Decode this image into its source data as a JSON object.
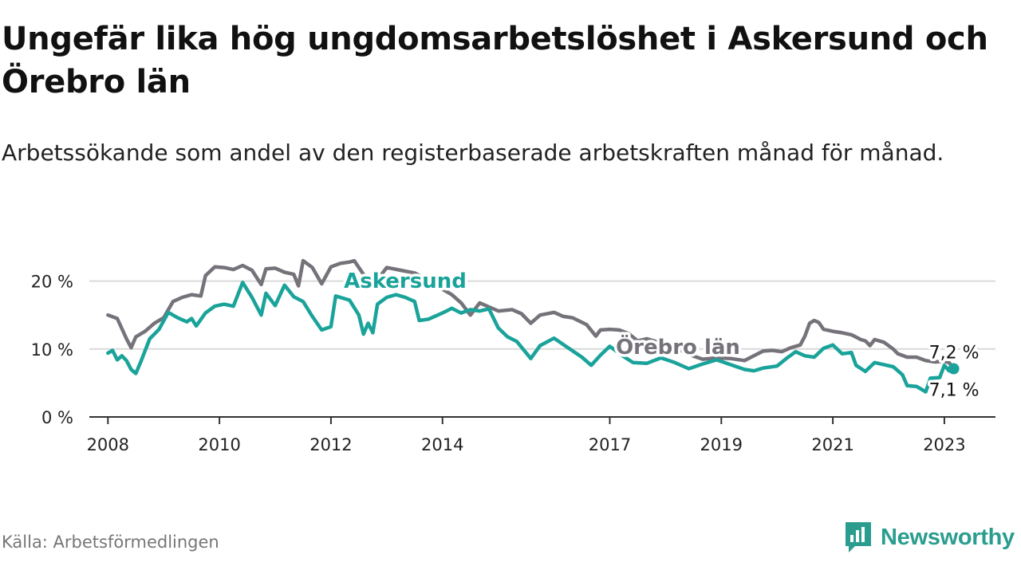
{
  "title": "Ungefär lika hög ungdomsarbetslöshet i Askersund och Örebro län",
  "subtitle": "Arbetssökande som andel av den registerbaserade arbetskraften månad för månad.",
  "source": "Källa: Arbetsförmedlingen",
  "brand": {
    "name": "Newsworthy",
    "icon": "newsworthy-logo-icon",
    "color": "#2a9d8f"
  },
  "colors": {
    "askersund": "#1aa39a",
    "orebro": "#75727a",
    "grid": "#d9d9d9",
    "axis": "#333333"
  },
  "chart_data": {
    "type": "line",
    "title": "Ungefär lika hög ungdomsarbetslöshet i Askersund och Örebro län",
    "subtitle": "Arbetssökande som andel av den registerbaserade arbetskraften månad för månad.",
    "xlabel": "",
    "ylabel": "",
    "ylim": [
      0,
      25
    ],
    "xlim": [
      "2007-09",
      "2023-12"
    ],
    "y_ticks": [
      {
        "value": 0,
        "label": "0 %"
      },
      {
        "value": 10,
        "label": "10 %"
      },
      {
        "value": 20,
        "label": "20 %"
      }
    ],
    "x_ticks": [
      {
        "value": "2008-01",
        "label": "2008"
      },
      {
        "value": "2010-01",
        "label": "2010"
      },
      {
        "value": "2012-01",
        "label": "2012"
      },
      {
        "value": "2014-01",
        "label": "2014"
      },
      {
        "value": "2017-01",
        "label": "2017"
      },
      {
        "value": "2019-01",
        "label": "2019"
      },
      {
        "value": "2021-01",
        "label": "2021"
      },
      {
        "value": "2023-01",
        "label": "2023"
      }
    ],
    "grid": true,
    "legend": "inline labels",
    "end_labels": {
      "orebro": "7,2 %",
      "askersund": "7,1 %"
    },
    "series": [
      {
        "name": "Örebro län",
        "key": "orebro",
        "points": [
          [
            "2008-01",
            15.0
          ],
          [
            "2008-03",
            14.5
          ],
          [
            "2008-05",
            11.5
          ],
          [
            "2008-06",
            10.2
          ],
          [
            "2008-07",
            11.8
          ],
          [
            "2008-09",
            12.6
          ],
          [
            "2008-11",
            13.8
          ],
          [
            "2009-01",
            14.6
          ],
          [
            "2009-03",
            17.0
          ],
          [
            "2009-05",
            17.6
          ],
          [
            "2009-07",
            18.0
          ],
          [
            "2009-09",
            17.8
          ],
          [
            "2009-10",
            20.8
          ],
          [
            "2009-12",
            22.1
          ],
          [
            "2010-02",
            22.0
          ],
          [
            "2010-04",
            21.7
          ],
          [
            "2010-06",
            22.3
          ],
          [
            "2010-08",
            21.6
          ],
          [
            "2010-10",
            19.5
          ],
          [
            "2010-11",
            21.8
          ],
          [
            "2011-01",
            21.9
          ],
          [
            "2011-03",
            21.3
          ],
          [
            "2011-05",
            21.0
          ],
          [
            "2011-06",
            19.3
          ],
          [
            "2011-07",
            23.0
          ],
          [
            "2011-09",
            22.0
          ],
          [
            "2011-11",
            19.6
          ],
          [
            "2012-01",
            22.1
          ],
          [
            "2012-03",
            22.6
          ],
          [
            "2012-05",
            22.8
          ],
          [
            "2012-06",
            23.0
          ],
          [
            "2012-08",
            21.0
          ],
          [
            "2012-10",
            19.3
          ],
          [
            "2013-01",
            22.0
          ],
          [
            "2013-04",
            21.6
          ],
          [
            "2013-07",
            21.2
          ],
          [
            "2013-10",
            20.1
          ],
          [
            "2014-01",
            18.8
          ],
          [
            "2014-03",
            18.0
          ],
          [
            "2014-05",
            16.8
          ],
          [
            "2014-07",
            15.0
          ],
          [
            "2014-09",
            16.8
          ],
          [
            "2014-11",
            16.2
          ],
          [
            "2015-01",
            15.6
          ],
          [
            "2015-04",
            15.8
          ],
          [
            "2015-06",
            15.2
          ],
          [
            "2015-08",
            13.8
          ],
          [
            "2015-10",
            15.0
          ],
          [
            "2016-01",
            15.4
          ],
          [
            "2016-03",
            14.8
          ],
          [
            "2016-05",
            14.6
          ],
          [
            "2016-08",
            13.6
          ],
          [
            "2016-10",
            11.9
          ],
          [
            "2016-11",
            12.8
          ],
          [
            "2017-01",
            12.9
          ],
          [
            "2017-03",
            12.8
          ],
          [
            "2017-05",
            12.3
          ],
          [
            "2017-07",
            11.2
          ],
          [
            "2017-09",
            11.5
          ],
          [
            "2017-12",
            10.9
          ],
          [
            "2018-03",
            10.3
          ],
          [
            "2018-06",
            9.2
          ],
          [
            "2018-09",
            8.5
          ],
          [
            "2018-12",
            8.7
          ],
          [
            "2019-03",
            8.6
          ],
          [
            "2019-06",
            8.3
          ],
          [
            "2019-08",
            9.0
          ],
          [
            "2019-10",
            9.7
          ],
          [
            "2019-12",
            9.8
          ],
          [
            "2020-02",
            9.6
          ],
          [
            "2020-04",
            10.2
          ],
          [
            "2020-06",
            10.6
          ],
          [
            "2020-07",
            11.9
          ],
          [
            "2020-08",
            13.8
          ],
          [
            "2020-09",
            14.2
          ],
          [
            "2020-10",
            13.9
          ],
          [
            "2020-11",
            12.9
          ],
          [
            "2021-01",
            12.6
          ],
          [
            "2021-03",
            12.4
          ],
          [
            "2021-05",
            12.1
          ],
          [
            "2021-07",
            11.4
          ],
          [
            "2021-08",
            11.2
          ],
          [
            "2021-09",
            10.5
          ],
          [
            "2021-10",
            11.4
          ],
          [
            "2021-12",
            11.0
          ],
          [
            "2022-02",
            10.0
          ],
          [
            "2022-03",
            9.3
          ],
          [
            "2022-05",
            8.8
          ],
          [
            "2022-07",
            8.8
          ],
          [
            "2022-09",
            8.3
          ],
          [
            "2022-11",
            8.1
          ],
          [
            "2023-01",
            8.2
          ],
          [
            "2023-02",
            8.0
          ],
          [
            "2023-03",
            7.2
          ]
        ]
      },
      {
        "name": "Askersund",
        "key": "askersund",
        "points": [
          [
            "2008-01",
            9.4
          ],
          [
            "2008-02",
            9.8
          ],
          [
            "2008-03",
            8.4
          ],
          [
            "2008-04",
            9.0
          ],
          [
            "2008-05",
            8.3
          ],
          [
            "2008-06",
            7.0
          ],
          [
            "2008-07",
            6.4
          ],
          [
            "2008-08",
            8.0
          ],
          [
            "2008-10",
            11.5
          ],
          [
            "2008-12",
            12.9
          ],
          [
            "2009-02",
            15.4
          ],
          [
            "2009-04",
            14.6
          ],
          [
            "2009-06",
            14.0
          ],
          [
            "2009-07",
            14.5
          ],
          [
            "2009-08",
            13.4
          ],
          [
            "2009-10",
            15.3
          ],
          [
            "2009-12",
            16.3
          ],
          [
            "2010-02",
            16.6
          ],
          [
            "2010-04",
            16.3
          ],
          [
            "2010-06",
            19.8
          ],
          [
            "2010-08",
            17.6
          ],
          [
            "2010-10",
            15.0
          ],
          [
            "2010-11",
            18.2
          ],
          [
            "2011-01",
            16.4
          ],
          [
            "2011-03",
            19.4
          ],
          [
            "2011-05",
            17.7
          ],
          [
            "2011-07",
            17.0
          ],
          [
            "2011-09",
            14.8
          ],
          [
            "2011-11",
            12.8
          ],
          [
            "2012-01",
            13.3
          ],
          [
            "2012-02",
            17.8
          ],
          [
            "2012-05",
            17.2
          ],
          [
            "2012-07",
            15.0
          ],
          [
            "2012-08",
            12.2
          ],
          [
            "2012-09",
            13.8
          ],
          [
            "2012-10",
            12.4
          ],
          [
            "2012-11",
            16.6
          ],
          [
            "2013-01",
            17.6
          ],
          [
            "2013-03",
            18.0
          ],
          [
            "2013-05",
            17.6
          ],
          [
            "2013-07",
            17.0
          ],
          [
            "2013-08",
            14.2
          ],
          [
            "2013-10",
            14.4
          ],
          [
            "2014-01",
            15.3
          ],
          [
            "2014-03",
            16.0
          ],
          [
            "2014-05",
            15.3
          ],
          [
            "2014-07",
            15.8
          ],
          [
            "2014-09",
            15.6
          ],
          [
            "2014-11",
            15.9
          ],
          [
            "2015-01",
            13.1
          ],
          [
            "2015-03",
            11.8
          ],
          [
            "2015-05",
            11.1
          ],
          [
            "2015-08",
            8.6
          ],
          [
            "2015-10",
            10.5
          ],
          [
            "2016-01",
            11.6
          ],
          [
            "2016-04",
            10.2
          ],
          [
            "2016-07",
            8.8
          ],
          [
            "2016-09",
            7.6
          ],
          [
            "2016-11",
            9.1
          ],
          [
            "2017-01",
            10.4
          ],
          [
            "2017-04",
            8.9
          ],
          [
            "2017-06",
            8.0
          ],
          [
            "2017-09",
            7.9
          ],
          [
            "2017-12",
            8.7
          ],
          [
            "2018-03",
            8.0
          ],
          [
            "2018-06",
            7.1
          ],
          [
            "2018-09",
            7.8
          ],
          [
            "2018-12",
            8.4
          ],
          [
            "2019-03",
            7.7
          ],
          [
            "2019-06",
            7.0
          ],
          [
            "2019-08",
            6.8
          ],
          [
            "2019-10",
            7.2
          ],
          [
            "2020-01",
            7.5
          ],
          [
            "2020-03",
            8.6
          ],
          [
            "2020-05",
            9.6
          ],
          [
            "2020-07",
            9.0
          ],
          [
            "2020-09",
            8.8
          ],
          [
            "2020-11",
            10.1
          ],
          [
            "2021-01",
            10.6
          ],
          [
            "2021-03",
            9.3
          ],
          [
            "2021-05",
            9.5
          ],
          [
            "2021-06",
            7.6
          ],
          [
            "2021-08",
            6.7
          ],
          [
            "2021-10",
            8.0
          ],
          [
            "2021-12",
            7.7
          ],
          [
            "2022-02",
            7.4
          ],
          [
            "2022-04",
            6.2
          ],
          [
            "2022-05",
            4.6
          ],
          [
            "2022-07",
            4.5
          ],
          [
            "2022-09",
            3.7
          ],
          [
            "2022-10",
            5.7
          ],
          [
            "2022-12",
            5.8
          ],
          [
            "2023-01",
            7.6
          ],
          [
            "2023-02",
            6.8
          ],
          [
            "2023-03",
            7.1
          ]
        ]
      }
    ]
  }
}
